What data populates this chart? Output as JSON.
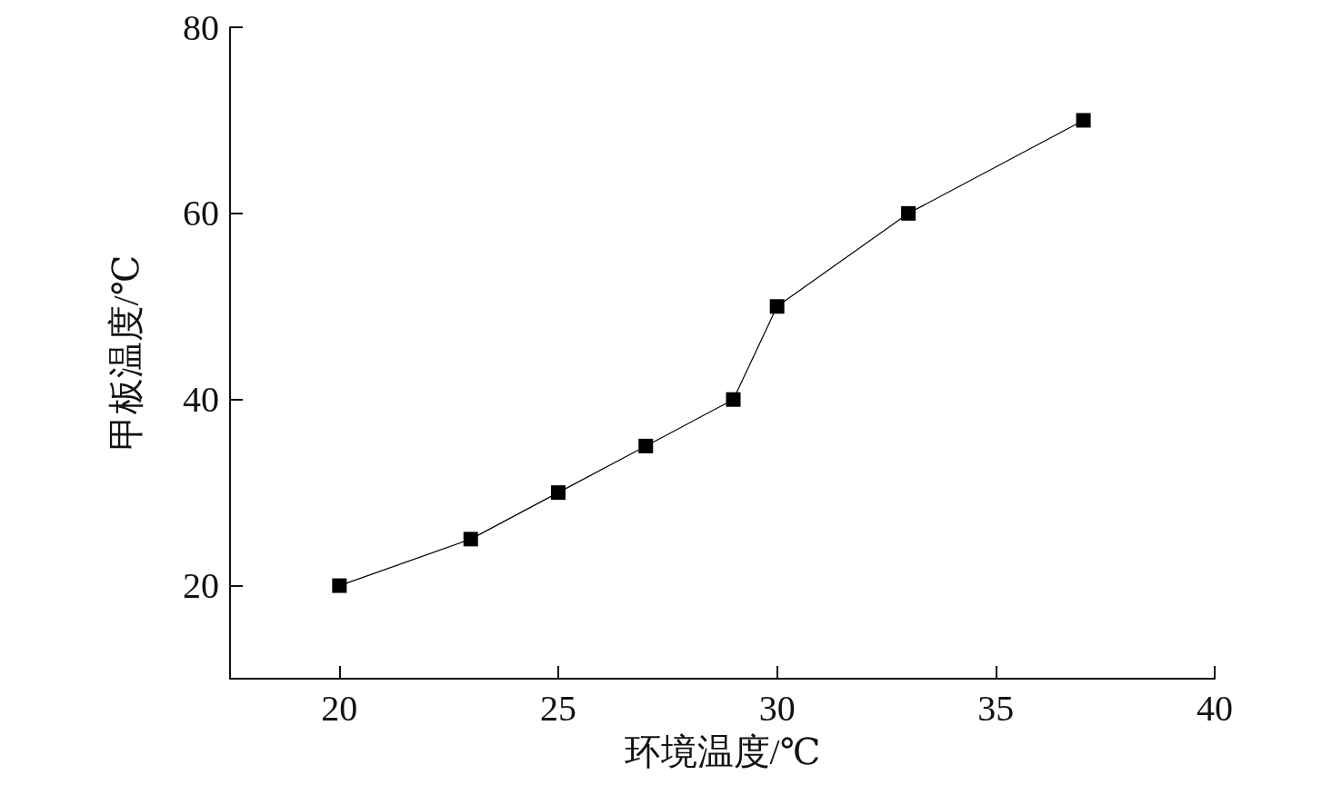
{
  "chart_data": {
    "type": "line",
    "xlabel": "环境温度/℃",
    "ylabel": "甲板温度/℃",
    "x": [
      20,
      23,
      25,
      27,
      29,
      30,
      33,
      37
    ],
    "series": [
      {
        "color": "#000000",
        "values": [
          20,
          25,
          30,
          35,
          40,
          50,
          60,
          70
        ]
      }
    ],
    "xlim": [
      17.5,
      40
    ],
    "xticks": [
      20,
      25,
      30,
      35,
      40
    ],
    "ylim": [
      10,
      80
    ],
    "yticks": [
      20,
      40,
      60,
      80
    ],
    "grid": false,
    "marker": "square",
    "line_style": "solid"
  }
}
